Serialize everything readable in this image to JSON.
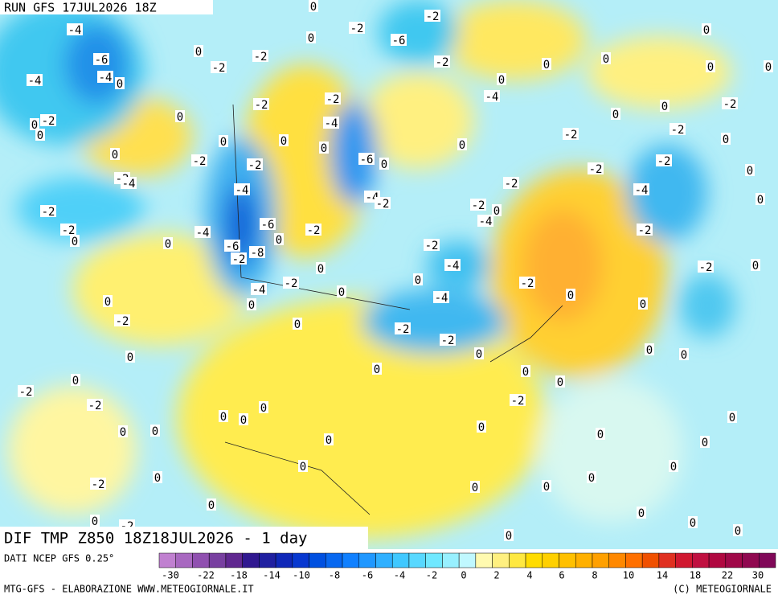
{
  "header": {
    "run": "RUN GFS 17JUL2026 18Z"
  },
  "map": {
    "title": "DIF TMP Z850 18Z18JUL2026 - 1 day",
    "contour_labels": [
      -4,
      0,
      -2,
      -2,
      0,
      -6,
      -6,
      0,
      -2,
      -2,
      -2,
      -4,
      0,
      -4,
      0,
      0,
      0,
      0,
      0,
      0,
      -4,
      -2,
      -2,
      0,
      -2,
      0,
      0,
      -4,
      0,
      0,
      -2,
      -2,
      -2,
      0,
      0,
      0,
      0,
      0,
      -2,
      -2,
      -6,
      0,
      0,
      -2,
      -2,
      0,
      -2,
      -4,
      -4,
      -2,
      -2,
      -4,
      -2,
      -4,
      0,
      -2,
      -2,
      0,
      -6,
      -2,
      -4,
      0,
      -2,
      0,
      -4,
      0,
      -6,
      -8,
      -2,
      -2,
      -4,
      -2,
      0,
      0,
      -2,
      0,
      -2,
      -4,
      0,
      -4,
      0,
      0,
      0,
      0,
      -2,
      0,
      -2,
      -2,
      0,
      0,
      0,
      0,
      0,
      0,
      0,
      -2,
      0,
      -2,
      -2,
      0,
      0,
      0,
      0,
      0,
      0,
      0,
      0,
      0,
      0,
      0,
      0,
      0,
      -2,
      0,
      0,
      0,
      0,
      0,
      -2,
      0,
      0,
      0,
      0,
      -2
    ]
  },
  "legend": {
    "source": "DATI NCEP GFS 0.25°",
    "colors": [
      "#c080d0",
      "#a868c0",
      "#9050b0",
      "#7840a0",
      "#602890",
      "#301890",
      "#2020a0",
      "#1028b8",
      "#0838d0",
      "#0050e0",
      "#0868f0",
      "#1080ff",
      "#2098ff",
      "#30b0ff",
      "#40c8ff",
      "#58d8ff",
      "#70e8ff",
      "#98f0ff",
      "#c0f8ff",
      "#fffab0",
      "#fff080",
      "#ffe840",
      "#ffdc00",
      "#ffd000",
      "#ffc000",
      "#ffb000",
      "#ffa000",
      "#ff8800",
      "#ff7000",
      "#f05000",
      "#e03020",
      "#d01830",
      "#c01040",
      "#b00840",
      "#a00848",
      "#900850",
      "#800858"
    ],
    "ticks": [
      -30,
      -22,
      -18,
      -14,
      -10,
      -8,
      -6,
      -4,
      -2,
      0,
      2,
      4,
      6,
      8,
      10,
      14,
      18,
      22,
      30
    ]
  },
  "footer": {
    "left": "MTG-GFS - ELABORAZIONE WWW.METEOGIORNALE.IT",
    "right": "(C) METEOGIORNALE"
  }
}
